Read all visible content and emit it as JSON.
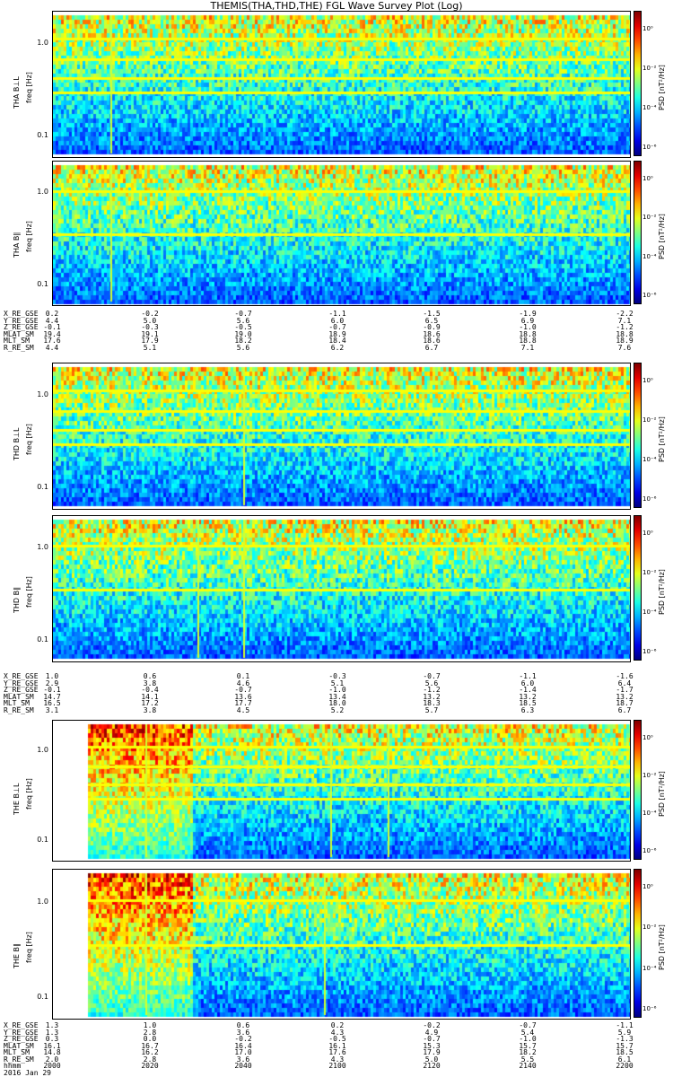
{
  "title": "THEMIS(THA,THD,THE) FGL Wave Survey Plot (Log)",
  "colors": {
    "frame": "#000000",
    "background": "#ffffff"
  },
  "chart_data": [
    {
      "type": "heatmap",
      "probe": "THA",
      "component": "B_L",
      "ylabel_line1": "THA B⊥L",
      "ylabel_line2": "freq [Hz]",
      "ytick_labels": [
        "1.0",
        "0.1"
      ],
      "yscale": "log",
      "colorbar_label": "PSD [nT²/Hz]",
      "colorbar_ticks": [
        "10⁰",
        "10⁻²",
        "10⁻⁴",
        "10⁻⁶"
      ],
      "colorbar_scale": "log",
      "x_start_frac": 0.0,
      "vertical_lines": [
        0.1
      ]
    },
    {
      "type": "heatmap",
      "probe": "THA",
      "component": "B_parallel",
      "ylabel_line1": "THA B∥",
      "ylabel_line2": "freq [Hz]",
      "ytick_labels": [
        "1.0",
        "0.1"
      ],
      "yscale": "log",
      "colorbar_label": "PSD [nT²/Hz]",
      "colorbar_ticks": [
        "10⁰",
        "10⁻²",
        "10⁻⁴",
        "10⁻⁶"
      ],
      "colorbar_scale": "log",
      "x_start_frac": 0.0,
      "vertical_lines": [
        0.1
      ]
    },
    {
      "type": "heatmap",
      "probe": "THD",
      "component": "B_L",
      "ylabel_line1": "THD B⊥L",
      "ylabel_line2": "freq [Hz]",
      "ytick_labels": [
        "1.0",
        "0.1"
      ],
      "yscale": "log",
      "colorbar_label": "PSD [nT²/Hz]",
      "colorbar_ticks": [
        "10⁰",
        "10⁻²",
        "10⁻⁴",
        "10⁻⁶"
      ],
      "colorbar_scale": "log",
      "x_start_frac": 0.0,
      "vertical_lines": [
        0.33
      ]
    },
    {
      "type": "heatmap",
      "probe": "THD",
      "component": "B_parallel",
      "ylabel_line1": "THD B∥",
      "ylabel_line2": "freq [Hz]",
      "ytick_labels": [
        "1.0",
        "0.1"
      ],
      "yscale": "log",
      "colorbar_label": "PSD [nT²/Hz]",
      "colorbar_ticks": [
        "10⁰",
        "10⁻²",
        "10⁻⁴",
        "10⁻⁶"
      ],
      "colorbar_scale": "log",
      "x_start_frac": 0.0,
      "vertical_lines": [
        0.25,
        0.33
      ]
    },
    {
      "type": "heatmap",
      "probe": "THE",
      "component": "B_L",
      "ylabel_line1": "THE B⊥L",
      "ylabel_line2": "freq [Hz]",
      "ytick_labels": [
        "1.0",
        "0.1"
      ],
      "yscale": "log",
      "colorbar_label": "PSD [nT²/Hz]",
      "colorbar_ticks": [
        "10⁰",
        "10⁻²",
        "10⁻⁴",
        "10⁻⁶"
      ],
      "colorbar_scale": "log",
      "x_start_frac": 0.06,
      "vertical_lines": [
        0.16,
        0.48,
        0.58
      ]
    },
    {
      "type": "heatmap",
      "probe": "THE",
      "component": "B_parallel",
      "ylabel_line1": "THE B∥",
      "ylabel_line2": "freq [Hz]",
      "ytick_labels": [
        "1.0",
        "0.1"
      ],
      "yscale": "log",
      "colorbar_label": "PSD [nT²/Hz]",
      "colorbar_ticks": [
        "10⁰",
        "10⁻²",
        "10⁻⁴",
        "10⁻⁶"
      ],
      "colorbar_scale": "log",
      "x_start_frac": 0.06,
      "vertical_lines": [
        0.16,
        0.47
      ]
    }
  ],
  "ephemeris": [
    {
      "probe": "THA",
      "labels": [
        "X_RE_GSE",
        "Y_RE_GSE",
        "Z_RE_GSE",
        "MLAT_SM",
        "MLT_SM",
        "R_RE_SM"
      ],
      "columns": [
        [
          "0.2",
          "4.4",
          "-0.1",
          "19.4",
          "17.6",
          "4.4"
        ],
        [
          "-0.2",
          "5.0",
          "-0.3",
          "19.1",
          "17.9",
          "5.1"
        ],
        [
          "-0.7",
          "5.6",
          "-0.5",
          "19.0",
          "18.2",
          "5.6"
        ],
        [
          "-1.1",
          "6.0",
          "-0.7",
          "18.9",
          "18.4",
          "6.2"
        ],
        [
          "-1.5",
          "6.5",
          "-0.9",
          "18.6",
          "18.6",
          "6.7"
        ],
        [
          "-1.9",
          "6.9",
          "-1.0",
          "18.8",
          "18.8",
          "7.1"
        ],
        [
          "-2.2",
          "7.1",
          "-1.2",
          "18.8",
          "18.9",
          "7.6"
        ]
      ]
    },
    {
      "probe": "THD",
      "labels": [
        "X_RE_GSE",
        "Y_RE_GSE",
        "Z_RE_GSE",
        "MLAT_SM",
        "MLT_SM",
        "R_RE_SM"
      ],
      "columns": [
        [
          "1.0",
          "2.9",
          "-0.1",
          "14.7",
          "16.5",
          "3.1"
        ],
        [
          "0.6",
          "3.8",
          "-0.4",
          "14.1",
          "17.2",
          "3.8"
        ],
        [
          "0.1",
          "4.6",
          "-0.7",
          "13.6",
          "17.7",
          "4.5"
        ],
        [
          "-0.3",
          "5.1",
          "-1.0",
          "13.4",
          "18.0",
          "5.2"
        ],
        [
          "-0.7",
          "5.6",
          "-1.2",
          "13.2",
          "18.3",
          "5.7"
        ],
        [
          "-1.1",
          "6.0",
          "-1.4",
          "13.2",
          "18.5",
          "6.3"
        ],
        [
          "-1.6",
          "6.4",
          "-1.7",
          "13.2",
          "18.7",
          "6.7"
        ]
      ]
    },
    {
      "probe": "THE",
      "labels": [
        "X_RE_GSE",
        "Y_RE_GSE",
        "Z_RE_GSE",
        "MLAT_SM",
        "MLT_SM",
        "R_RE_SM",
        "hhmm",
        "2016 Jan 29"
      ],
      "columns": [
        [
          "1.3",
          "1.3",
          "0.3",
          "16.1",
          "14.8",
          "2.0",
          "2000"
        ],
        [
          "1.0",
          "2.8",
          "0.0",
          "16.7",
          "16.2",
          "2.8",
          "2020"
        ],
        [
          "0.6",
          "3.6",
          "-0.2",
          "16.4",
          "17.0",
          "3.6",
          "2040"
        ],
        [
          "0.2",
          "4.3",
          "-0.5",
          "16.1",
          "17.6",
          "4.3",
          "2100"
        ],
        [
          "-0.2",
          "4.9",
          "-0.7",
          "15.3",
          "17.9",
          "5.0",
          "2120"
        ],
        [
          "-0.7",
          "5.4",
          "-1.0",
          "15.7",
          "18.2",
          "5.5",
          "2140"
        ],
        [
          "-1.1",
          "5.9",
          "-1.3",
          "15.7",
          "18.5",
          "6.1",
          "2200"
        ]
      ]
    }
  ]
}
